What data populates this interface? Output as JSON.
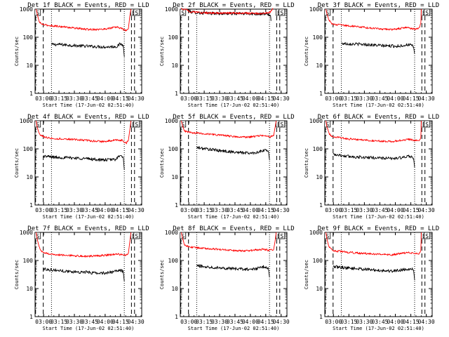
{
  "figure": {
    "x_tick_labels": [
      "03:00",
      "03:15",
      "03:30",
      "03:45",
      "04:00",
      "04:15",
      "04:30"
    ],
    "y_tick_labels": [
      "1",
      "10",
      "100",
      "1000"
    ],
    "xlabel": "Start Time (17-Jun-02 02:51:40)",
    "ylabel": "Counts/sec",
    "colors": {
      "events": "#000000",
      "lld": "#ff0000",
      "axes": "#000000"
    }
  },
  "chart_data": [
    {
      "type": "line",
      "title": "Det 1f  BLACK = Events, RED = LLD",
      "markers": [
        "S",
        "E",
        "S"
      ],
      "xlabel": "Start Time (17-Jun-02 02:51:40)",
      "ylabel": "Counts/sec",
      "yscale": "log",
      "xlim_minutes_from_start": [
        0,
        104
      ],
      "ylim": [
        1,
        1000
      ],
      "event_markers_minutes": [
        0.5,
        8,
        16,
        87,
        94,
        97
      ],
      "series": [
        {
          "name": "Events",
          "color": "#000000",
          "x_minutes": [
            16,
            25,
            40,
            55,
            70,
            80,
            83,
            86,
            87
          ],
          "values": [
            55,
            55,
            50,
            47,
            45,
            47,
            58,
            52,
            20
          ]
        },
        {
          "name": "LLD",
          "color": "#ff0000",
          "x_minutes": [
            1,
            2,
            4,
            6,
            10,
            20,
            35,
            50,
            65,
            80,
            85,
            89,
            91,
            92.5,
            93.5
          ],
          "values": [
            1000,
            700,
            350,
            300,
            270,
            250,
            220,
            190,
            190,
            230,
            200,
            170,
            200,
            600,
            1000
          ]
        }
      ]
    },
    {
      "type": "line",
      "title": "Det 2f  BLACK = Events, RED = LLD",
      "markers": [
        "S",
        "E",
        "S"
      ],
      "xlabel": "Start Time (17-Jun-02 02:51:40)",
      "ylabel": "Counts/sec",
      "yscale": "log",
      "xlim_minutes_from_start": [
        0,
        104
      ],
      "ylim": [
        1,
        1000
      ],
      "event_markers_minutes": [
        0.5,
        8,
        16,
        87,
        94,
        97
      ],
      "series": [
        {
          "name": "Events",
          "color": "#000000",
          "x_minutes": [
            7,
            10,
            20,
            40,
            60,
            80,
            86,
            88,
            88.5
          ],
          "values": [
            1000,
            800,
            720,
            700,
            690,
            680,
            650,
            600,
            380
          ]
        },
        {
          "name": "LLD",
          "color": "#ff0000",
          "x_minutes": [
            1,
            3,
            5,
            7,
            10,
            20,
            40,
            60,
            80,
            87,
            89,
            90.5
          ],
          "values": [
            1000,
            1000,
            1000,
            950,
            800,
            740,
            720,
            720,
            700,
            750,
            900,
            1000
          ]
        }
      ]
    },
    {
      "type": "line",
      "title": "Det 3f  BLACK = Events, RED = LLD",
      "markers": [
        "S",
        "E",
        "S"
      ],
      "xlabel": "Start Time (17-Jun-02 02:51:40)",
      "ylabel": "Counts/sec",
      "yscale": "log",
      "xlim_minutes_from_start": [
        0,
        104
      ],
      "ylim": [
        1,
        1000
      ],
      "event_markers_minutes": [
        0.5,
        8,
        16,
        87,
        94,
        97
      ],
      "series": [
        {
          "name": "Events",
          "color": "#000000",
          "x_minutes": [
            16,
            25,
            40,
            55,
            70,
            78,
            82,
            86,
            87
          ],
          "values": [
            60,
            58,
            55,
            50,
            48,
            52,
            55,
            45,
            25
          ]
        },
        {
          "name": "LLD",
          "color": "#ff0000",
          "x_minutes": [
            1,
            2,
            4,
            6,
            10,
            20,
            35,
            50,
            65,
            80,
            88,
            91,
            93,
            93.5
          ],
          "values": [
            1000,
            700,
            400,
            320,
            280,
            260,
            230,
            200,
            190,
            220,
            190,
            210,
            300,
            1000
          ]
        }
      ]
    },
    {
      "type": "line",
      "title": "Det 4f  BLACK = Events, RED = LLD",
      "markers": [
        "S",
        "E",
        "S"
      ],
      "xlabel": "Start Time (17-Jun-02 02:51:40)",
      "ylabel": "Counts/sec",
      "yscale": "log",
      "xlim_minutes_from_start": [
        0,
        104
      ],
      "ylim": [
        1,
        1000
      ],
      "event_markers_minutes": [
        0.5,
        8,
        16,
        87,
        94,
        97
      ],
      "series": [
        {
          "name": "Events",
          "color": "#000000",
          "x_minutes": [
            8,
            20,
            35,
            50,
            65,
            78,
            82,
            86,
            87
          ],
          "values": [
            55,
            50,
            48,
            45,
            40,
            42,
            55,
            50,
            18
          ]
        },
        {
          "name": "LLD",
          "color": "#ff0000",
          "x_minutes": [
            1,
            2,
            4,
            6,
            10,
            20,
            35,
            50,
            65,
            80,
            85,
            89,
            91,
            92.5,
            93.5
          ],
          "values": [
            1000,
            600,
            350,
            300,
            260,
            230,
            220,
            200,
            180,
            210,
            200,
            160,
            200,
            500,
            1000
          ]
        }
      ]
    },
    {
      "type": "line",
      "title": "Det 5f  BLACK = Events, RED = LLD",
      "markers": [
        "S",
        "E",
        "S"
      ],
      "xlabel": "Start Time (17-Jun-02 02:51:40)",
      "ylabel": "Counts/sec",
      "yscale": "log",
      "xlim_minutes_from_start": [
        0,
        104
      ],
      "ylim": [
        1,
        1000
      ],
      "event_markers_minutes": [
        0.5,
        8,
        16,
        87,
        94,
        97
      ],
      "series": [
        {
          "name": "Events",
          "color": "#000000",
          "x_minutes": [
            16,
            25,
            40,
            55,
            70,
            78,
            83,
            86,
            87
          ],
          "values": [
            110,
            100,
            85,
            75,
            70,
            80,
            90,
            80,
            40
          ]
        },
        {
          "name": "LLD",
          "color": "#ff0000",
          "x_minutes": [
            1,
            2,
            4,
            6,
            10,
            20,
            35,
            50,
            65,
            80,
            88,
            91,
            92.5,
            93.5
          ],
          "values": [
            1000,
            700,
            450,
            400,
            380,
            350,
            320,
            280,
            260,
            300,
            270,
            290,
            600,
            1000
          ]
        }
      ]
    },
    {
      "type": "line",
      "title": "Det 6f  BLACK = Events, RED = LLD",
      "markers": [
        "S",
        "E",
        "S"
      ],
      "xlabel": "Start Time (17-Jun-02 02:51:40)",
      "ylabel": "Counts/sec",
      "yscale": "log",
      "xlim_minutes_from_start": [
        0,
        104
      ],
      "ylim": [
        1,
        1000
      ],
      "event_markers_minutes": [
        0.5,
        8,
        16,
        87,
        94,
        97
      ],
      "series": [
        {
          "name": "Events",
          "color": "#000000",
          "x_minutes": [
            8,
            20,
            35,
            50,
            65,
            78,
            83,
            86,
            87
          ],
          "values": [
            65,
            55,
            50,
            48,
            45,
            50,
            55,
            45,
            22
          ]
        },
        {
          "name": "LLD",
          "color": "#ff0000",
          "x_minutes": [
            1,
            2,
            4,
            6,
            10,
            20,
            35,
            50,
            65,
            80,
            88,
            91,
            93,
            93.5
          ],
          "values": [
            1000,
            600,
            350,
            300,
            260,
            230,
            210,
            190,
            180,
            220,
            200,
            190,
            250,
            1000
          ]
        }
      ]
    },
    {
      "type": "line",
      "title": "Det 7f  BLACK = Events, RED = LLD",
      "markers": [
        "S",
        "E",
        "S"
      ],
      "xlabel": "Start Time (17-Jun-02 02:51:40)",
      "ylabel": "Counts/sec",
      "yscale": "log",
      "xlim_minutes_from_start": [
        0,
        104
      ],
      "ylim": [
        1,
        1000
      ],
      "event_markers_minutes": [
        0.5,
        8,
        16,
        87,
        94,
        97
      ],
      "series": [
        {
          "name": "Events",
          "color": "#000000",
          "x_minutes": [
            8,
            20,
            35,
            50,
            65,
            78,
            83,
            86,
            87
          ],
          "values": [
            50,
            45,
            40,
            38,
            35,
            40,
            45,
            40,
            18
          ]
        },
        {
          "name": "LLD",
          "color": "#ff0000",
          "x_minutes": [
            1,
            2,
            4,
            6,
            10,
            20,
            35,
            50,
            65,
            80,
            85,
            89,
            91,
            92.5,
            93.5
          ],
          "values": [
            1000,
            600,
            300,
            220,
            180,
            160,
            150,
            140,
            150,
            170,
            160,
            150,
            180,
            500,
            1000
          ]
        }
      ]
    },
    {
      "type": "line",
      "title": "Det 8f  BLACK = Events, RED = LLD",
      "markers": [
        "S",
        "E",
        "S"
      ],
      "xlabel": "Start Time (17-Jun-02 02:51:40)",
      "ylabel": "Counts/sec",
      "yscale": "log",
      "xlim_minutes_from_start": [
        0,
        104
      ],
      "ylim": [
        1,
        1000
      ],
      "event_markers_minutes": [
        0.5,
        8,
        16,
        87,
        94,
        97
      ],
      "series": [
        {
          "name": "Events",
          "color": "#000000",
          "x_minutes": [
            16,
            25,
            40,
            55,
            70,
            78,
            82,
            86,
            87
          ],
          "values": [
            65,
            60,
            55,
            50,
            48,
            55,
            60,
            50,
            25
          ]
        },
        {
          "name": "LLD",
          "color": "#ff0000",
          "x_minutes": [
            1,
            2,
            4,
            6,
            10,
            20,
            35,
            50,
            65,
            80,
            88,
            91,
            92.5,
            93.5
          ],
          "values": [
            1000,
            650,
            380,
            330,
            300,
            280,
            250,
            230,
            220,
            250,
            230,
            240,
            500,
            1000
          ]
        }
      ]
    },
    {
      "type": "line",
      "title": "Det 9f  BLACK = Events, RED = LLD",
      "markers": [
        "S",
        "E",
        "S"
      ],
      "xlabel": "Start Time (17-Jun-02 02:51:40)",
      "ylabel": "Counts/sec",
      "yscale": "log",
      "xlim_minutes_from_start": [
        0,
        104
      ],
      "ylim": [
        1,
        1000
      ],
      "event_markers_minutes": [
        0.5,
        8,
        16,
        87,
        94,
        97
      ],
      "series": [
        {
          "name": "Events",
          "color": "#000000",
          "x_minutes": [
            8,
            20,
            35,
            50,
            65,
            78,
            83,
            86,
            87
          ],
          "values": [
            60,
            55,
            50,
            45,
            42,
            48,
            52,
            45,
            20
          ]
        },
        {
          "name": "LLD",
          "color": "#ff0000",
          "x_minutes": [
            1,
            2,
            4,
            6,
            10,
            20,
            35,
            50,
            65,
            80,
            88,
            91,
            93,
            93.5
          ],
          "values": [
            1000,
            600,
            300,
            250,
            220,
            200,
            180,
            170,
            160,
            190,
            180,
            170,
            220,
            1000
          ]
        }
      ]
    }
  ]
}
